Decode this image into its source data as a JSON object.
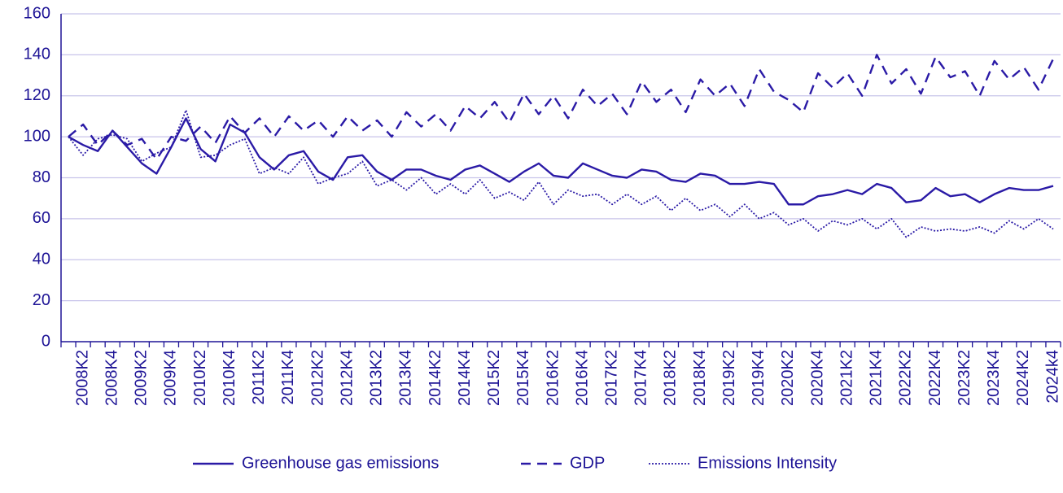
{
  "chart_data": {
    "type": "line",
    "categories": [
      null,
      "2008K2",
      null,
      "2008K4",
      null,
      "2009K2",
      null,
      "2009K4",
      null,
      "2010K2",
      null,
      "2010K4",
      null,
      "2011K2",
      null,
      "2011K4",
      null,
      "2012K2",
      null,
      "2012K4",
      null,
      "2013K2",
      null,
      "2013K4",
      null,
      "2014K2",
      null,
      "2014K4",
      null,
      "2015K2",
      null,
      "2015K4",
      null,
      "2016K2",
      null,
      "2016K4",
      null,
      "2017K2",
      null,
      "2017K4",
      null,
      "2018K2",
      null,
      "2018K4",
      null,
      "2019K2",
      null,
      "2019K4",
      null,
      "2020K2",
      null,
      "2020K4",
      null,
      "2021K2",
      null,
      "2021K4",
      null,
      "2022K2",
      null,
      "2022K4",
      null,
      "2023K2",
      null,
      "2023K4",
      null,
      "2024K2",
      null,
      "2024k4"
    ],
    "series": [
      {
        "name": "Greenhouse gas emissions",
        "color": "#2a1aa6",
        "dash": "solid",
        "values": [
          100,
          96,
          93,
          103,
          95,
          87,
          82,
          95,
          109,
          94,
          88,
          106,
          102,
          90,
          84,
          91,
          93,
          83,
          79,
          90,
          91,
          83,
          79,
          84,
          84,
          81,
          79,
          84,
          86,
          82,
          78,
          83,
          87,
          81,
          80,
          87,
          84,
          81,
          80,
          84,
          83,
          79,
          78,
          82,
          81,
          77,
          77,
          78,
          77,
          67,
          67,
          71,
          72,
          74,
          72,
          77,
          75,
          68,
          69,
          75,
          71,
          72,
          68,
          72,
          75,
          74,
          74,
          76
        ]
      },
      {
        "name": "GDP",
        "color": "#2a1aa6",
        "dash": "dashed",
        "values": [
          100,
          106,
          96,
          103,
          96,
          99,
          89,
          100,
          98,
          105,
          97,
          110,
          102,
          109,
          100,
          110,
          103,
          108,
          100,
          110,
          103,
          108,
          100,
          112,
          105,
          111,
          103,
          115,
          109,
          117,
          107,
          121,
          111,
          120,
          109,
          123,
          115,
          121,
          111,
          127,
          117,
          123,
          112,
          128,
          120,
          126,
          115,
          133,
          122,
          118,
          112,
          131,
          124,
          131,
          120,
          140,
          126,
          133,
          121,
          139,
          129,
          132,
          120,
          137,
          128,
          134,
          123,
          138
        ]
      },
      {
        "name": "Emissions Intensity",
        "color": "#2a1aa6",
        "dash": "dotted",
        "values": [
          100,
          91,
          99,
          101,
          99,
          88,
          92,
          95,
          113,
          90,
          91,
          96,
          99,
          82,
          85,
          82,
          90,
          77,
          80,
          82,
          88,
          76,
          79,
          74,
          80,
          72,
          77,
          72,
          79,
          70,
          73,
          69,
          78,
          67,
          74,
          71,
          72,
          67,
          72,
          67,
          71,
          64,
          70,
          64,
          67,
          61,
          67,
          60,
          63,
          57,
          60,
          54,
          59,
          57,
          60,
          55,
          60,
          51,
          56,
          54,
          55,
          54,
          56,
          53,
          59,
          55,
          60,
          55
        ]
      }
    ],
    "ylim": [
      0,
      160
    ],
    "yticks": [
      0,
      20,
      40,
      60,
      80,
      100,
      120,
      140,
      160
    ],
    "grid": true,
    "legend": "bottom"
  }
}
